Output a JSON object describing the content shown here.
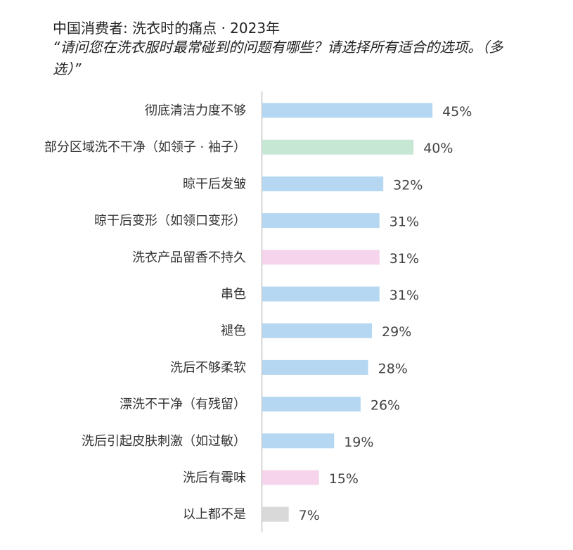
{
  "chart_data": {
    "type": "bar",
    "orientation": "horizontal",
    "title": "中国消费者: 洗衣时的痛点 · 2023年",
    "subtitle": "“请问您在洗衣服时最常碰到的问题有哪些？请选择所有适合的选项。（多选）”",
    "categories": [
      "彻底清洁力度不够",
      "部分区域洗不干净（如领子 · 袖子）",
      "晾干后发皱",
      "晾干后变形（如领口变形）",
      "洗衣产品留香不持久",
      "串色",
      "褪色",
      "洗后不够柔软",
      "漂洗不干净（有残留）",
      "洗后引起皮肤刺激（如过敏）",
      "洗后有霉味",
      "以上都不是"
    ],
    "values": [
      45,
      40,
      32,
      31,
      31,
      31,
      29,
      28,
      26,
      19,
      15,
      7
    ],
    "value_labels": [
      "45%",
      "40%",
      "32%",
      "31%",
      "31%",
      "31%",
      "29%",
      "28%",
      "26%",
      "19%",
      "15%",
      "7%"
    ],
    "bar_colors": [
      "#b5d7f1",
      "#c7e7d5",
      "#b5d7f1",
      "#b5d7f1",
      "#f6d4eb",
      "#b5d7f1",
      "#b5d7f1",
      "#b5d7f1",
      "#b5d7f1",
      "#b5d7f1",
      "#f6d4eb",
      "#d9d9d9"
    ],
    "xlim": [
      0,
      100
    ],
    "grid": false,
    "legend": "none",
    "xlabel": "",
    "ylabel": ""
  }
}
